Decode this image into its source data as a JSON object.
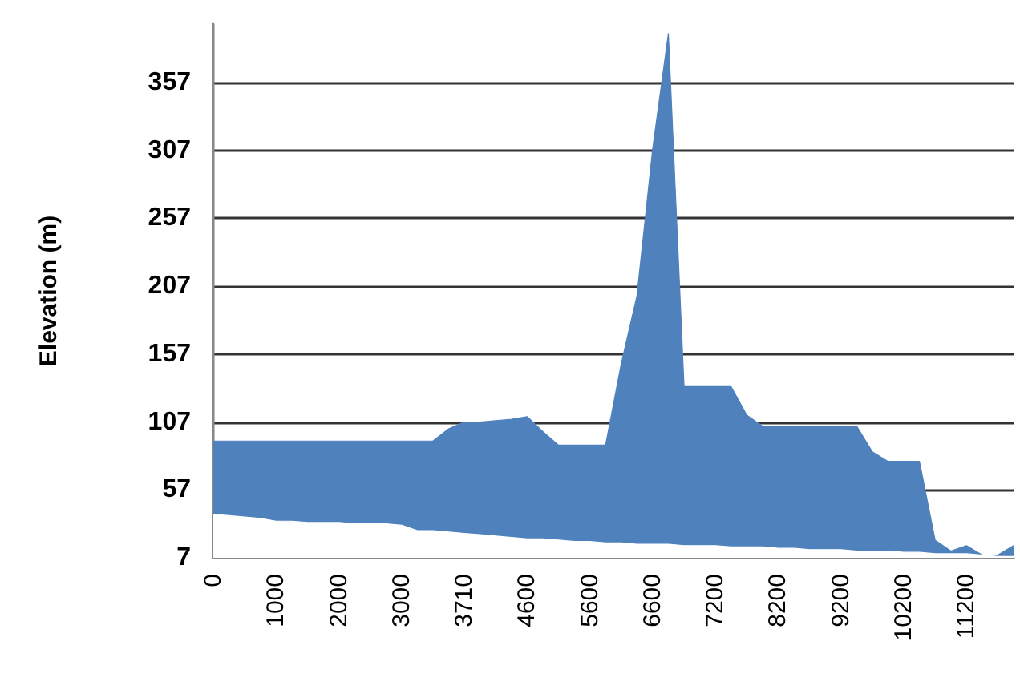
{
  "chart_data": {
    "type": "area",
    "ylabel": "Elevation (m)",
    "categories": [
      "0",
      null,
      null,
      null,
      "1000",
      null,
      null,
      null,
      "2000",
      null,
      null,
      null,
      "3000",
      null,
      null,
      null,
      "3710",
      null,
      null,
      null,
      "4600",
      null,
      null,
      null,
      "5600",
      null,
      null,
      null,
      "6600",
      null,
      null,
      null,
      "7200",
      null,
      null,
      null,
      "8200",
      null,
      null,
      null,
      "9200",
      null,
      null,
      null,
      "10200",
      null,
      null,
      null,
      "11200",
      null,
      null,
      null
    ],
    "series": [
      {
        "color": "#4f81bd",
        "values": [
          93,
          93,
          93,
          93,
          93,
          93,
          93,
          93,
          93,
          93,
          93,
          93,
          93,
          93,
          93,
          102,
          107,
          107,
          108,
          109,
          111,
          100,
          90,
          90,
          90,
          90,
          150,
          200,
          308,
          393,
          133,
          133,
          133,
          133,
          112,
          104,
          104,
          104,
          104,
          104,
          104,
          104,
          85,
          78,
          78,
          78,
          20,
          12,
          16,
          9,
          9,
          16
        ]
      },
      {
        "color": "#ffffff",
        "values": [
          39,
          38,
          37,
          36,
          34,
          34,
          33,
          33,
          33,
          32,
          32,
          32,
          31,
          27,
          27,
          26,
          25,
          24,
          23,
          22,
          21,
          21,
          20,
          19,
          19,
          18,
          18,
          17,
          17,
          17,
          16,
          16,
          16,
          15,
          15,
          15,
          14,
          14,
          13,
          13,
          13,
          12,
          12,
          12,
          11,
          11,
          10,
          10,
          10,
          9,
          8,
          8
        ]
      }
    ],
    "ylim": [
      7,
      400
    ],
    "yticks": [
      7,
      57,
      107,
      157,
      207,
      257,
      307,
      357
    ],
    "grid": "y"
  }
}
